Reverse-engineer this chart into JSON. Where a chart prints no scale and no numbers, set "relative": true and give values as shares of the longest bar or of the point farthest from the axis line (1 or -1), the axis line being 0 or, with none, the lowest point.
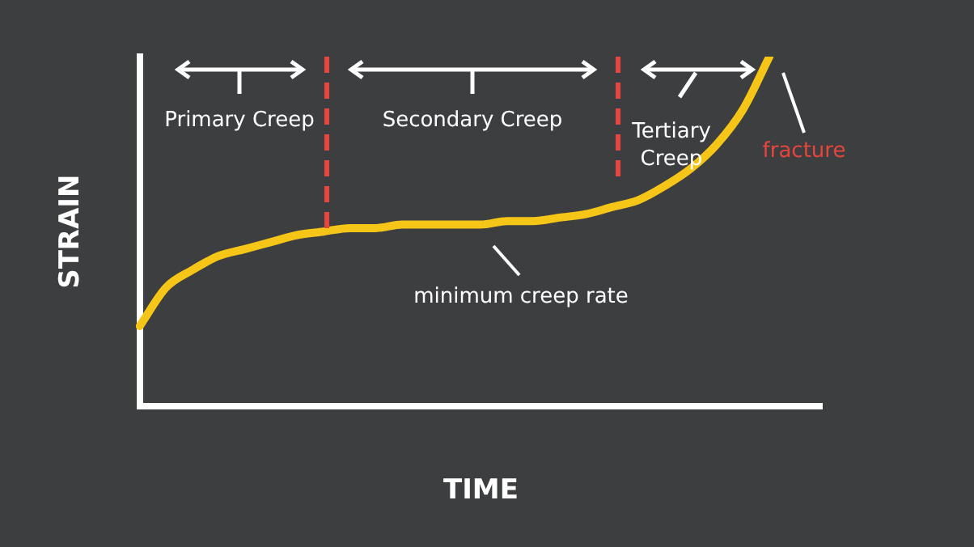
{
  "chart_data": {
    "type": "line",
    "relative": true,
    "xlabel": "TIME",
    "ylabel": "STRAIN",
    "categories": [
      null,
      null,
      null,
      null,
      null,
      null,
      null,
      null,
      null,
      null,
      null,
      null,
      null,
      null,
      null,
      null,
      null,
      null,
      null,
      null,
      null,
      null,
      null,
      null,
      null,
      null,
      null
    ],
    "series": [
      {
        "color": "#f5c518",
        "values": [
          0.23,
          0.34,
          0.39,
          0.43,
          0.45,
          0.47,
          0.49,
          0.5,
          0.51,
          0.51,
          0.52,
          0.52,
          0.52,
          0.52,
          0.53,
          0.53,
          0.54,
          0.55,
          0.57,
          0.59,
          0.63,
          0.68,
          0.75,
          0.85,
          1,
          null,
          null
        ]
      }
    ],
    "annotations": [
      "Primary Creep",
      "Secondary Creep",
      "Tertiary Creep",
      "fracture",
      "minimum creep rate"
    ],
    "grid": false,
    "legend": false,
    "marker": "none",
    "line_style": "solid"
  }
}
